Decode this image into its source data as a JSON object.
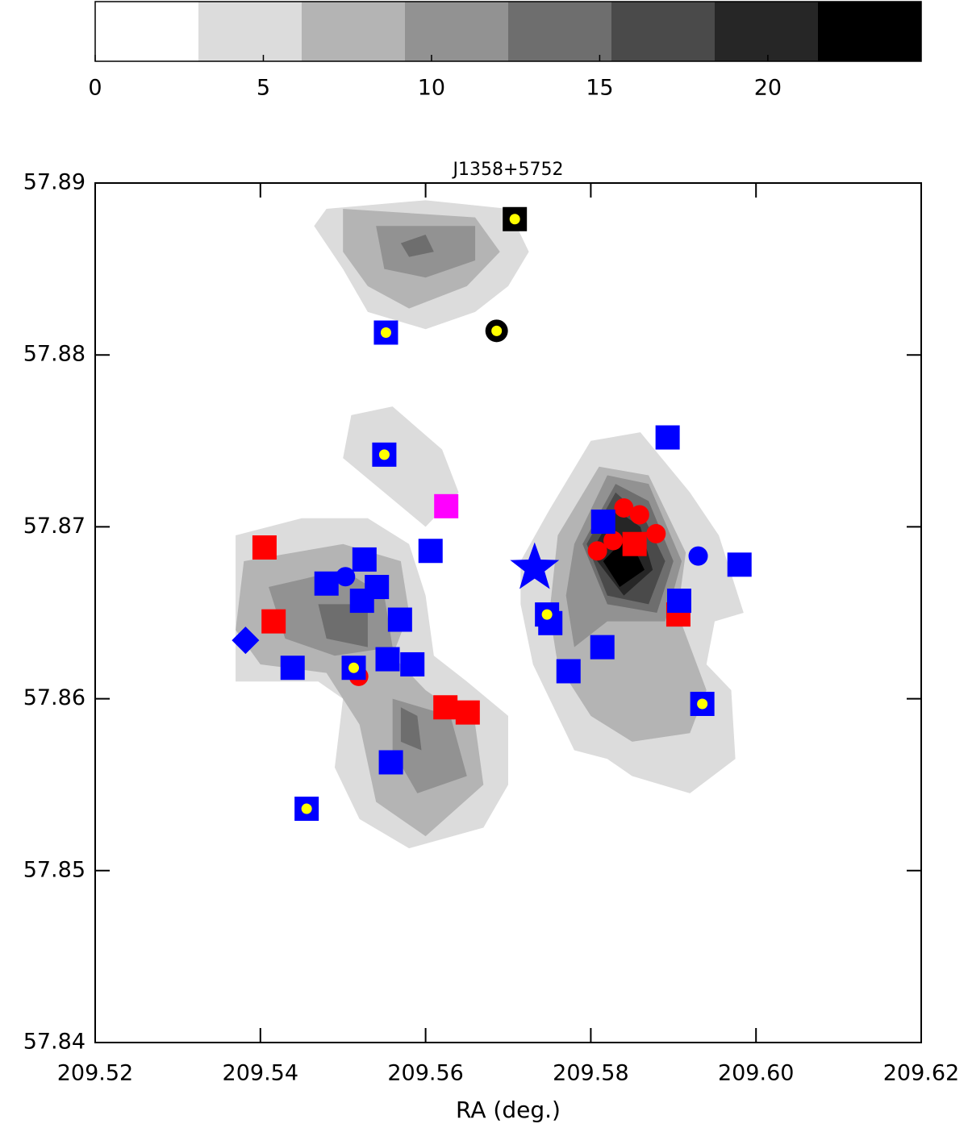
{
  "chart_data": {
    "type": "contour",
    "title": "J1358+5752",
    "xlabel": "RA (deg.)",
    "xlim": [
      209.52,
      209.62
    ],
    "ylim": [
      57.84,
      57.89
    ],
    "xticks": [
      209.52,
      209.54,
      209.56,
      209.58,
      {
        "value": 209.6,
        "label": "209.60"
      },
      209.62
    ],
    "yticks": [
      57.84,
      57.85,
      57.86,
      57.87,
      57.88,
      57.89
    ],
    "colorbar": {
      "lim": [
        0,
        24.56
      ],
      "ticks": [
        0,
        5,
        10,
        15,
        20
      ],
      "levels": [
        0,
        3.07,
        6.14,
        9.21,
        12.28,
        15.35,
        18.42,
        21.49,
        24.56
      ],
      "colors": [
        "#ffffff",
        "#dcdcdc",
        "#b4b4b4",
        "#929292",
        "#6e6e6e",
        "#4a4a4a",
        "#262626",
        "#000000"
      ]
    },
    "contours": [
      {
        "level": 3.07,
        "ra": [
          209.548,
          209.56,
          209.57,
          209.5725,
          209.57,
          209.566,
          209.56,
          209.553,
          209.55,
          209.5465
        ],
        "dec": [
          57.8885,
          57.889,
          57.8885,
          57.886,
          57.884,
          57.8825,
          57.8815,
          57.8825,
          57.885,
          57.8875
        ]
      },
      {
        "level": 3.07,
        "ra": [
          209.537,
          209.545,
          209.553,
          209.558,
          209.56,
          209.561,
          209.565,
          209.57,
          209.57,
          209.567,
          209.558,
          209.552,
          209.549,
          209.55,
          209.547,
          209.537
        ],
        "dec": [
          57.8695,
          57.8705,
          57.8705,
          57.869,
          57.866,
          57.8625,
          57.861,
          57.859,
          57.855,
          57.8525,
          57.8513,
          57.853,
          57.856,
          57.86,
          57.861,
          57.861
        ]
      },
      {
        "level": 3.07,
        "ra": [
          209.551,
          209.556,
          209.562,
          209.564,
          209.56,
          209.555,
          209.55
        ],
        "dec": [
          57.8765,
          57.877,
          57.8745,
          57.872,
          57.87,
          57.872,
          57.874
        ]
      },
      {
        "level": 3.07,
        "ra": [
          209.575,
          209.58,
          209.586,
          209.592,
          209.5955,
          209.5985,
          209.595,
          209.594,
          209.597,
          209.5975,
          209.592,
          209.585,
          209.582,
          209.578,
          209.573,
          209.5715,
          209.5715
        ],
        "dec": [
          57.871,
          57.875,
          57.8755,
          57.872,
          57.8695,
          57.865,
          57.8645,
          57.862,
          57.8605,
          57.8565,
          57.8545,
          57.8555,
          57.8565,
          57.857,
          57.862,
          57.8655,
          57.868
        ]
      },
      {
        "level": 6.14,
        "ra": [
          209.55,
          209.566,
          209.569,
          209.565,
          209.558,
          209.553,
          209.55
        ],
        "dec": [
          57.8885,
          57.888,
          57.886,
          57.884,
          57.8827,
          57.884,
          57.886
        ]
      },
      {
        "level": 6.14,
        "ra": [
          209.538,
          209.55,
          209.557,
          209.558,
          209.556,
          209.56,
          209.566,
          209.567,
          209.56,
          209.554,
          209.552,
          209.548,
          209.54,
          209.537
        ],
        "dec": [
          57.868,
          57.869,
          57.868,
          57.865,
          57.8625,
          57.8605,
          57.8585,
          57.855,
          57.852,
          57.854,
          57.8585,
          57.8615,
          57.862,
          57.864
        ]
      },
      {
        "level": 6.14,
        "ra": [
          209.576,
          209.581,
          209.587,
          209.5915,
          209.5905,
          209.594,
          209.592,
          209.585,
          209.58,
          209.576,
          209.575
        ],
        "dec": [
          57.8695,
          57.8735,
          57.873,
          57.8685,
          57.865,
          57.8605,
          57.858,
          57.8575,
          57.859,
          57.862,
          57.865
        ]
      },
      {
        "level": 9.21,
        "ra": [
          209.554,
          209.566,
          209.566,
          209.56,
          209.555
        ],
        "dec": [
          57.8875,
          57.8875,
          57.8855,
          57.8845,
          57.885
        ]
      },
      {
        "level": 9.21,
        "ra": [
          209.541,
          209.55,
          209.555,
          209.556,
          209.549,
          209.543
        ],
        "dec": [
          57.8665,
          57.8675,
          57.866,
          57.863,
          57.8625,
          57.8635
        ]
      },
      {
        "level": 9.21,
        "ra": [
          209.556,
          209.563,
          209.565,
          209.559,
          209.556
        ],
        "dec": [
          57.86,
          57.859,
          57.8555,
          57.8545,
          57.857
        ]
      },
      {
        "level": 9.21,
        "ra": [
          209.578,
          209.582,
          209.587,
          209.591,
          209.589,
          209.582,
          209.578,
          209.577
        ],
        "dec": [
          57.869,
          57.873,
          57.8725,
          57.868,
          57.8645,
          57.8645,
          57.863,
          57.866
        ]
      },
      {
        "level": 12.28,
        "ra": [
          209.557,
          209.56,
          209.561,
          209.558
        ],
        "dec": [
          57.8865,
          57.887,
          57.886,
          57.8857
        ]
      },
      {
        "level": 12.28,
        "ra": [
          209.547,
          209.553,
          209.553,
          209.548
        ],
        "dec": [
          57.8655,
          57.8655,
          57.863,
          57.8635
        ]
      },
      {
        "level": 12.28,
        "ra": [
          209.557,
          209.559,
          209.5595,
          209.557
        ],
        "dec": [
          57.8595,
          57.859,
          57.857,
          57.8575
        ]
      },
      {
        "level": 12.28,
        "ra": [
          209.579,
          209.583,
          209.587,
          209.59,
          209.588,
          209.582
        ],
        "dec": [
          57.869,
          57.8725,
          57.8715,
          57.868,
          57.865,
          57.8655
        ]
      },
      {
        "level": 15.35,
        "ra": [
          209.5795,
          209.583,
          209.5865,
          209.589,
          209.587,
          209.582
        ],
        "dec": [
          57.869,
          57.872,
          57.8705,
          57.868,
          57.8655,
          57.866
        ]
      },
      {
        "level": 18.42,
        "ra": [
          209.58,
          209.583,
          209.586,
          209.5875,
          209.584
        ],
        "dec": [
          57.8685,
          57.871,
          57.87,
          57.8675,
          57.866
        ]
      },
      {
        "level": 21.49,
        "ra": [
          209.5815,
          209.5845,
          209.5865,
          209.5835
        ],
        "dec": [
          57.868,
          57.8695,
          57.8675,
          57.8665
        ]
      }
    ],
    "series": [
      {
        "marker": "square",
        "color": "#ff0000",
        "x": [
          209.5405,
          209.5416,
          209.5624,
          209.5651,
          209.5853,
          209.5906
        ],
        "y": [
          57.8688,
          57.8645,
          57.8595,
          57.8592,
          57.869,
          57.8649
        ]
      },
      {
        "marker": "circle",
        "color": "#ff0000",
        "x": [
          209.584,
          209.5859,
          209.5879,
          209.5827,
          209.5808,
          209.5519
        ],
        "y": [
          57.8711,
          57.8707,
          57.8696,
          57.8692,
          57.8686,
          57.8613
        ]
      },
      {
        "marker": "square",
        "color": "#0000ff",
        "x": [
          209.548,
          209.5526,
          209.5541,
          209.5523,
          209.5569,
          209.5606,
          209.5554,
          209.5584,
          209.5439,
          209.5558,
          209.5815,
          209.5893,
          209.598,
          209.5907,
          209.5751,
          209.5814,
          209.5773
        ],
        "y": [
          57.8667,
          57.8681,
          57.8665,
          57.8657,
          57.8646,
          57.8686,
          57.8623,
          57.862,
          57.8618,
          57.8563,
          57.8703,
          57.8752,
          57.8678,
          57.8657,
          57.8644,
          57.863,
          57.8616
        ]
      },
      {
        "marker": "square",
        "color": "#0000ff",
        "center": "#ffff00",
        "x": [
          209.5552,
          209.555,
          209.5747,
          209.5513,
          209.5935,
          209.5456
        ],
        "y": [
          57.8813,
          57.8742,
          57.8649,
          57.8618,
          57.8597,
          57.8536
        ]
      },
      {
        "marker": "square",
        "color": "#000000",
        "center": "#ffff00",
        "x": [
          209.5708
        ],
        "y": [
          57.8879
        ]
      },
      {
        "marker": "circle",
        "color": "#000000",
        "center": "#ffff00",
        "x": [
          209.5686
        ],
        "y": [
          57.8814
        ]
      },
      {
        "marker": "circle",
        "color": "#0000ff",
        "x": [
          209.5503,
          209.593
        ],
        "y": [
          57.8671,
          57.8683
        ]
      },
      {
        "marker": "star",
        "color": "#0000ff",
        "x": [
          209.5732
        ],
        "y": [
          57.8676
        ]
      },
      {
        "marker": "diamond",
        "color": "#0000ff",
        "x": [
          209.5382
        ],
        "y": [
          57.8634
        ]
      },
      {
        "marker": "square",
        "color": "#ff00ff",
        "x": [
          209.5625
        ],
        "y": [
          57.8712
        ]
      }
    ]
  }
}
